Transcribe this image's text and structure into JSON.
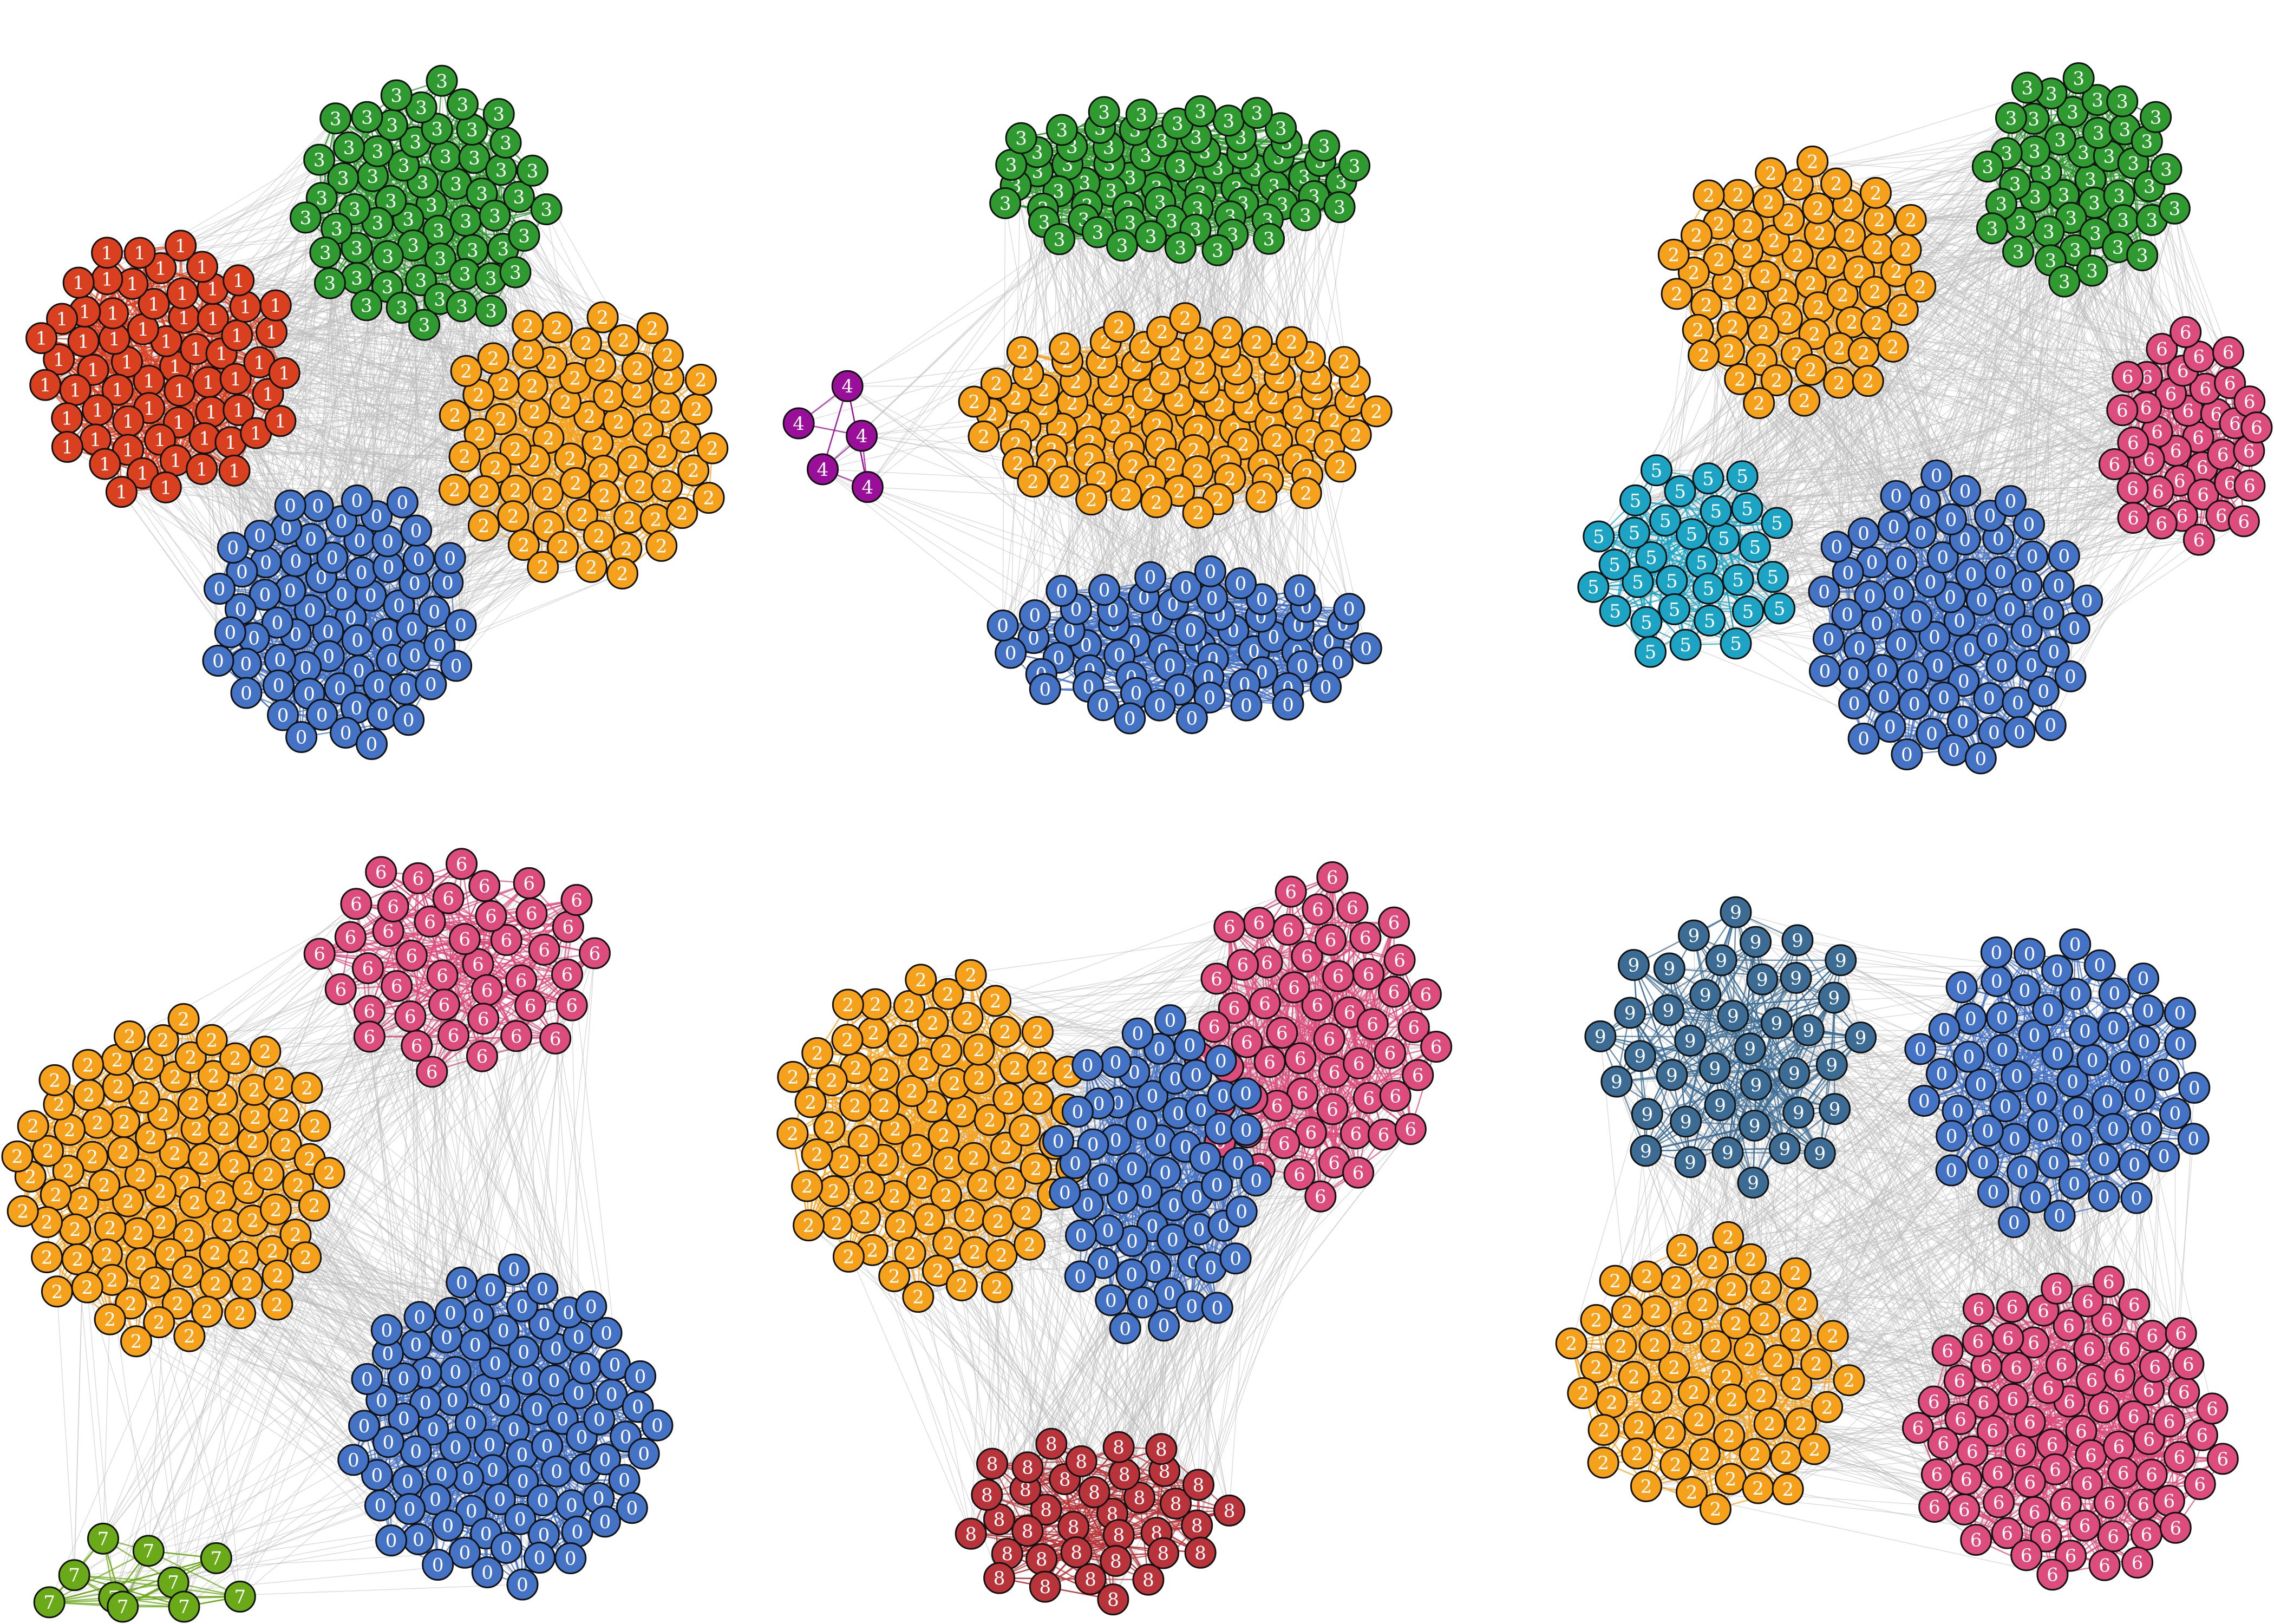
{
  "colors": {
    "0": "#4472C4",
    "1": "#D94020",
    "2": "#F5A11C",
    "3": "#2F9A2F",
    "4": "#9A0F9A",
    "5": "#1DA4C4",
    "6": "#DC4C7C",
    "7": "#6AAA18",
    "8": "#B8343A",
    "9": "#3C6C94",
    "background_edge": "#BBBBBB",
    "node_outline": "#111111"
  },
  "panels": [
    {
      "communities": [
        {
          "label": "1",
          "count": 64
        },
        {
          "label": "3",
          "count": 59
        },
        {
          "label": "2",
          "count": 68
        },
        {
          "label": "0",
          "count": 68
        }
      ]
    },
    {
      "communities": [
        {
          "label": "4",
          "count": 5
        },
        {
          "label": "3",
          "count": 70
        },
        {
          "label": "2",
          "count": 95
        },
        {
          "label": "0",
          "count": 62
        }
      ]
    },
    {
      "communities": [
        {
          "label": "2",
          "count": 62
        },
        {
          "label": "3",
          "count": 44
        },
        {
          "label": "6",
          "count": 38
        },
        {
          "label": "5",
          "count": 32
        },
        {
          "label": "0",
          "count": 72
        }
      ]
    },
    {
      "communities": [
        {
          "label": "6",
          "count": 42
        },
        {
          "label": "2",
          "count": 96
        },
        {
          "label": "0",
          "count": 92
        },
        {
          "label": "7",
          "count": 10
        }
      ]
    },
    {
      "communities": [
        {
          "label": "6",
          "count": 58
        },
        {
          "label": "2",
          "count": 82
        },
        {
          "label": "0",
          "count": 62
        },
        {
          "label": "8",
          "count": 36
        }
      ]
    },
    {
      "communities": [
        {
          "label": "9",
          "count": 40
        },
        {
          "label": "0",
          "count": 64
        },
        {
          "label": "2",
          "count": 60
        },
        {
          "label": "6",
          "count": 80
        }
      ]
    }
  ]
}
